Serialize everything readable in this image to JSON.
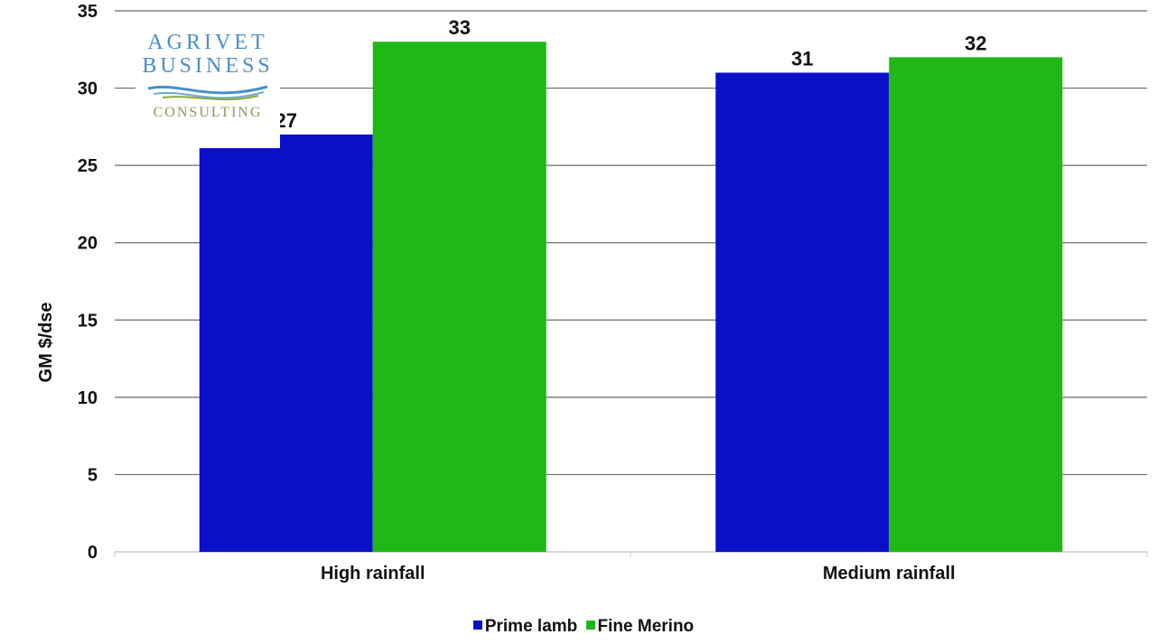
{
  "chart_data": {
    "type": "bar",
    "categories": [
      "High rainfall",
      "Medium rainfall"
    ],
    "series": [
      {
        "name": "Prime lamb",
        "values": [
          27,
          31
        ],
        "color": "#0a10c8"
      },
      {
        "name": "Fine Merino",
        "values": [
          33,
          32
        ],
        "color": "#1fb816"
      }
    ],
    "ylabel": "GM $/dse",
    "ylim": [
      0,
      35
    ],
    "yticks": [
      0,
      5,
      10,
      15,
      20,
      25,
      30,
      35
    ],
    "grid": true,
    "legend_position": "bottom"
  },
  "logo": {
    "line1": "AGRIVET",
    "line2": "BUSINESS",
    "line3": "CONSULTING"
  },
  "legend": {
    "items": [
      {
        "label": "Prime lamb",
        "color": "#0a10c8"
      },
      {
        "label": "Fine Merino",
        "color": "#1fb816"
      }
    ]
  }
}
